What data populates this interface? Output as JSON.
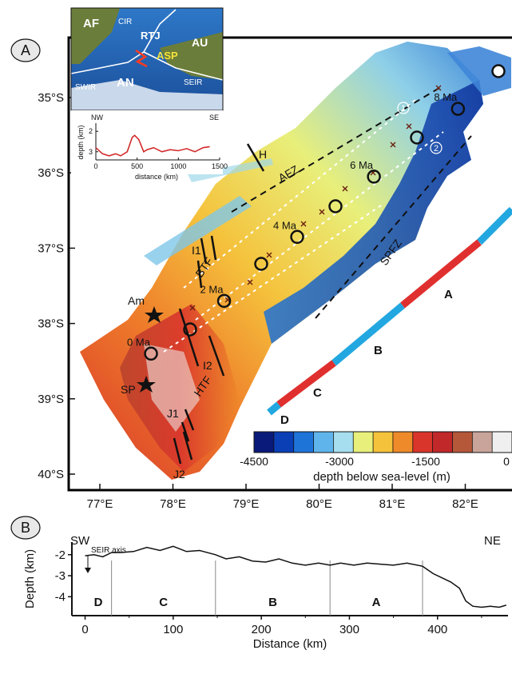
{
  "panel_a": {
    "letter": "A",
    "lat_ticks": [
      "35°S",
      "36°S",
      "37°S",
      "38°S",
      "39°S",
      "40°S"
    ],
    "lon_ticks": [
      "77°E",
      "78°E",
      "79°E",
      "80°E",
      "81°E",
      "82°E"
    ],
    "isochrons": [
      {
        "label": "8 Ma",
        "lon": 81.9,
        "lat": -35.15
      },
      {
        "label": "6 Ma",
        "lon": 80.75,
        "lat": -36.05
      },
      {
        "label": "4 Ma",
        "lon": 79.7,
        "lat": -36.85
      },
      {
        "label": "2 Ma",
        "lon": 78.7,
        "lat": -37.7
      },
      {
        "label": "0 Ma",
        "lon": 77.7,
        "lat": -38.4
      }
    ],
    "structure_labels": [
      "H",
      "AFZ",
      "SPFZ",
      "I1",
      "BTF",
      "I2",
      "HTF",
      "J1",
      "J2",
      "Am",
      "SP"
    ],
    "profile_labels": [
      "1",
      "2"
    ],
    "track_segments": [
      "A",
      "B",
      "C",
      "D"
    ],
    "colorbar": {
      "ticks": [
        "-4500",
        "-3000",
        "-1500",
        "0"
      ],
      "label": "depth below sea-level (m)",
      "colors": [
        "#0a1a7a",
        "#0b3fb5",
        "#1f74d8",
        "#5fb4ec",
        "#a6ddef",
        "#e8ef7a",
        "#f5c23c",
        "#ee8a2a",
        "#d9352b",
        "#c0282a",
        "#b5583a",
        "#c8a49a",
        "#efefef"
      ]
    },
    "track_colors": {
      "red": "#e02f2f",
      "blue": "#22a7e0"
    }
  },
  "inset": {
    "labels": [
      "AF",
      "CIR",
      "RTJ",
      "AU",
      "ASP",
      "AN",
      "SWIR",
      "SEIR"
    ]
  },
  "profile_inset": {
    "nw": "NW",
    "se": "SE",
    "ylabel": "depth (km)",
    "xlabel": "distance (km)",
    "xticks": [
      "0",
      "500",
      "1000",
      "1500"
    ],
    "yticks": [
      "2",
      "3"
    ]
  },
  "panel_b": {
    "letter": "B",
    "sw": "SW",
    "ne": "NE",
    "annotation": "SEIR axis",
    "segments": [
      "D",
      "C",
      "B",
      "A"
    ]
  },
  "chart_data": [
    {
      "type": "line",
      "title": "",
      "xlabel": "distance (km)",
      "ylabel": "depth (km)",
      "xlim": [
        0,
        1500
      ],
      "ylim": [
        3.4,
        1.6
      ],
      "series": [
        {
          "color": "#d32b2b",
          "x": [
            0,
            80,
            160,
            240,
            300,
            380,
            440,
            470,
            520,
            580,
            620,
            700,
            800,
            900,
            1000,
            1100,
            1200,
            1300,
            1380
          ],
          "y": [
            2.8,
            3.1,
            3.2,
            3.1,
            3.2,
            3.0,
            2.3,
            2.2,
            2.4,
            3.0,
            2.9,
            2.8,
            3.0,
            2.9,
            2.95,
            2.85,
            3.0,
            2.8,
            2.75
          ]
        }
      ]
    },
    {
      "type": "line",
      "title": "",
      "xlabel": "Distance (km)",
      "ylabel": "Depth (km)",
      "xlim": [
        -15,
        480
      ],
      "ylim": [
        -4.9,
        -1.4
      ],
      "xticks": [
        0,
        100,
        200,
        300,
        400
      ],
      "yticks": [
        -2,
        -3,
        -4
      ],
      "segment_bounds": [
        30,
        148,
        278,
        383
      ],
      "series": [
        {
          "color": "#111111",
          "x": [
            0,
            10,
            20,
            30,
            40,
            55,
            70,
            85,
            100,
            115,
            130,
            148,
            160,
            175,
            190,
            205,
            220,
            235,
            250,
            265,
            278,
            290,
            305,
            320,
            335,
            350,
            365,
            383,
            395,
            405,
            415,
            425,
            432,
            440,
            450,
            460,
            470,
            478
          ],
          "y": [
            -2.05,
            -2.0,
            -2.1,
            -1.9,
            -1.9,
            -1.85,
            -1.65,
            -1.8,
            -1.6,
            -1.85,
            -1.8,
            -2.0,
            -2.2,
            -2.1,
            -2.3,
            -2.35,
            -2.2,
            -2.4,
            -2.5,
            -2.4,
            -2.5,
            -2.4,
            -2.5,
            -2.4,
            -2.45,
            -2.5,
            -2.4,
            -2.55,
            -2.9,
            -3.1,
            -3.3,
            -3.6,
            -4.2,
            -4.45,
            -4.5,
            -4.45,
            -4.5,
            -4.4
          ]
        }
      ]
    }
  ]
}
